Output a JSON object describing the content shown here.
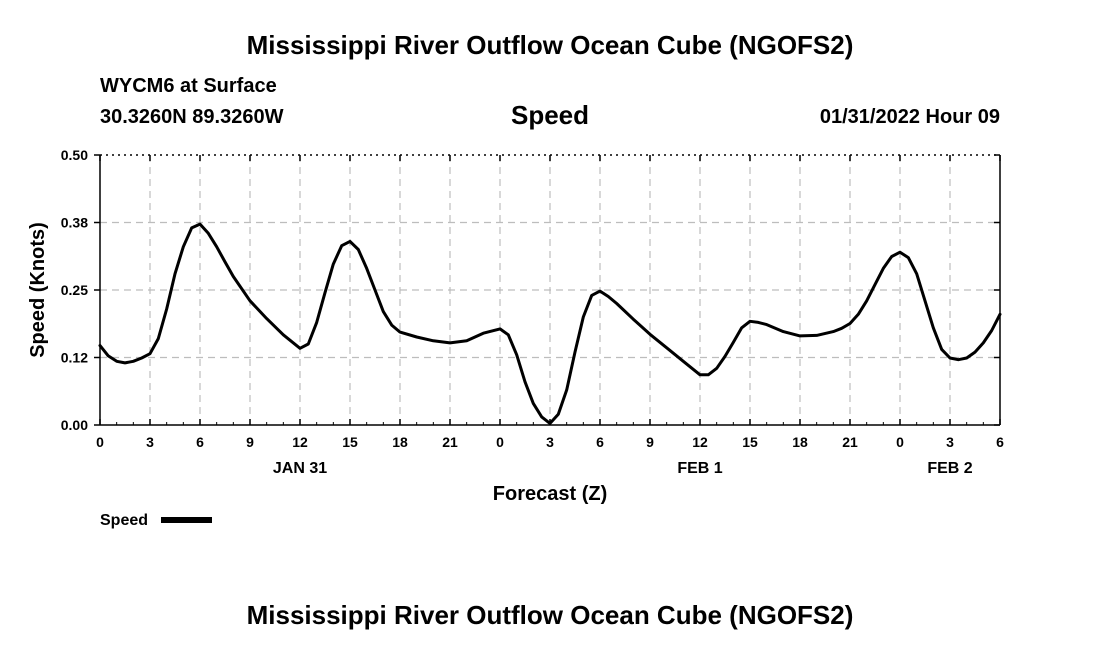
{
  "header": {
    "title": "Mississippi River Outflow Ocean Cube (NGOFS2)",
    "station": "WYCM6 at Surface",
    "coords": "30.3260N  89.3260W",
    "variable": "Speed",
    "datetime": "01/31/2022 Hour 09"
  },
  "footer": {
    "title": "Mississippi River Outflow Ocean Cube (NGOFS2)"
  },
  "chart_data": {
    "type": "line",
    "title": "Speed",
    "xlabel": "Forecast (Z)",
    "ylabel": "Speed (Knots)",
    "ylim": [
      0,
      0.5
    ],
    "xlim": [
      0,
      54
    ],
    "y_ticks": [
      "0.00",
      "0.12",
      "0.25",
      "0.38",
      "0.50"
    ],
    "y_tick_values": [
      0,
      0.125,
      0.25,
      0.375,
      0.5
    ],
    "x_tick_labels": [
      "0",
      "3",
      "6",
      "9",
      "12",
      "15",
      "18",
      "21",
      "0",
      "3",
      "6",
      "9",
      "12",
      "15",
      "18",
      "21",
      "0",
      "3",
      "6"
    ],
    "date_labels": [
      {
        "label": "JAN 31",
        "x": 12
      },
      {
        "label": "FEB 1",
        "x": 36
      },
      {
        "label": "FEB 2",
        "x": 51
      }
    ],
    "grid": true,
    "legend_position": "bottom-left",
    "series": [
      {
        "name": "Speed",
        "color": "#000000",
        "x": [
          0,
          0.5,
          1,
          1.5,
          2,
          2.5,
          3,
          3.5,
          4,
          4.5,
          5,
          5.5,
          6,
          6.5,
          7,
          7.5,
          8,
          9,
          10,
          11,
          12,
          12.5,
          13,
          13.5,
          14,
          14.5,
          15,
          15.5,
          16,
          16.5,
          17,
          17.5,
          18,
          19,
          20,
          21,
          22,
          23,
          24,
          24.5,
          25,
          25.5,
          26,
          26.5,
          27,
          27.5,
          28,
          28.5,
          29,
          29.5,
          30,
          30.5,
          31,
          32,
          33,
          34,
          35,
          36,
          36.5,
          37,
          37.5,
          38,
          38.5,
          39,
          39.5,
          40,
          41,
          42,
          43,
          44,
          44.5,
          45,
          45.5,
          46,
          46.5,
          47,
          47.5,
          48,
          48.5,
          49,
          49.5,
          50,
          50.5,
          51,
          51.5,
          52,
          52.5,
          53,
          53.5,
          54
        ],
        "values": [
          0.147,
          0.128,
          0.118,
          0.115,
          0.118,
          0.124,
          0.132,
          0.16,
          0.215,
          0.28,
          0.33,
          0.365,
          0.372,
          0.355,
          0.33,
          0.302,
          0.275,
          0.23,
          0.197,
          0.167,
          0.142,
          0.15,
          0.19,
          0.245,
          0.298,
          0.332,
          0.34,
          0.325,
          0.29,
          0.25,
          0.21,
          0.185,
          0.172,
          0.163,
          0.156,
          0.152,
          0.156,
          0.17,
          0.178,
          0.167,
          0.13,
          0.08,
          0.04,
          0.015,
          0.003,
          0.02,
          0.065,
          0.135,
          0.2,
          0.24,
          0.248,
          0.238,
          0.225,
          0.196,
          0.168,
          0.143,
          0.118,
          0.093,
          0.093,
          0.105,
          0.127,
          0.153,
          0.18,
          0.192,
          0.19,
          0.186,
          0.173,
          0.165,
          0.166,
          0.173,
          0.179,
          0.188,
          0.205,
          0.23,
          0.26,
          0.29,
          0.312,
          0.32,
          0.31,
          0.28,
          0.23,
          0.18,
          0.14,
          0.124,
          0.121,
          0.124,
          0.135,
          0.152,
          0.175,
          0.205
        ]
      }
    ]
  }
}
